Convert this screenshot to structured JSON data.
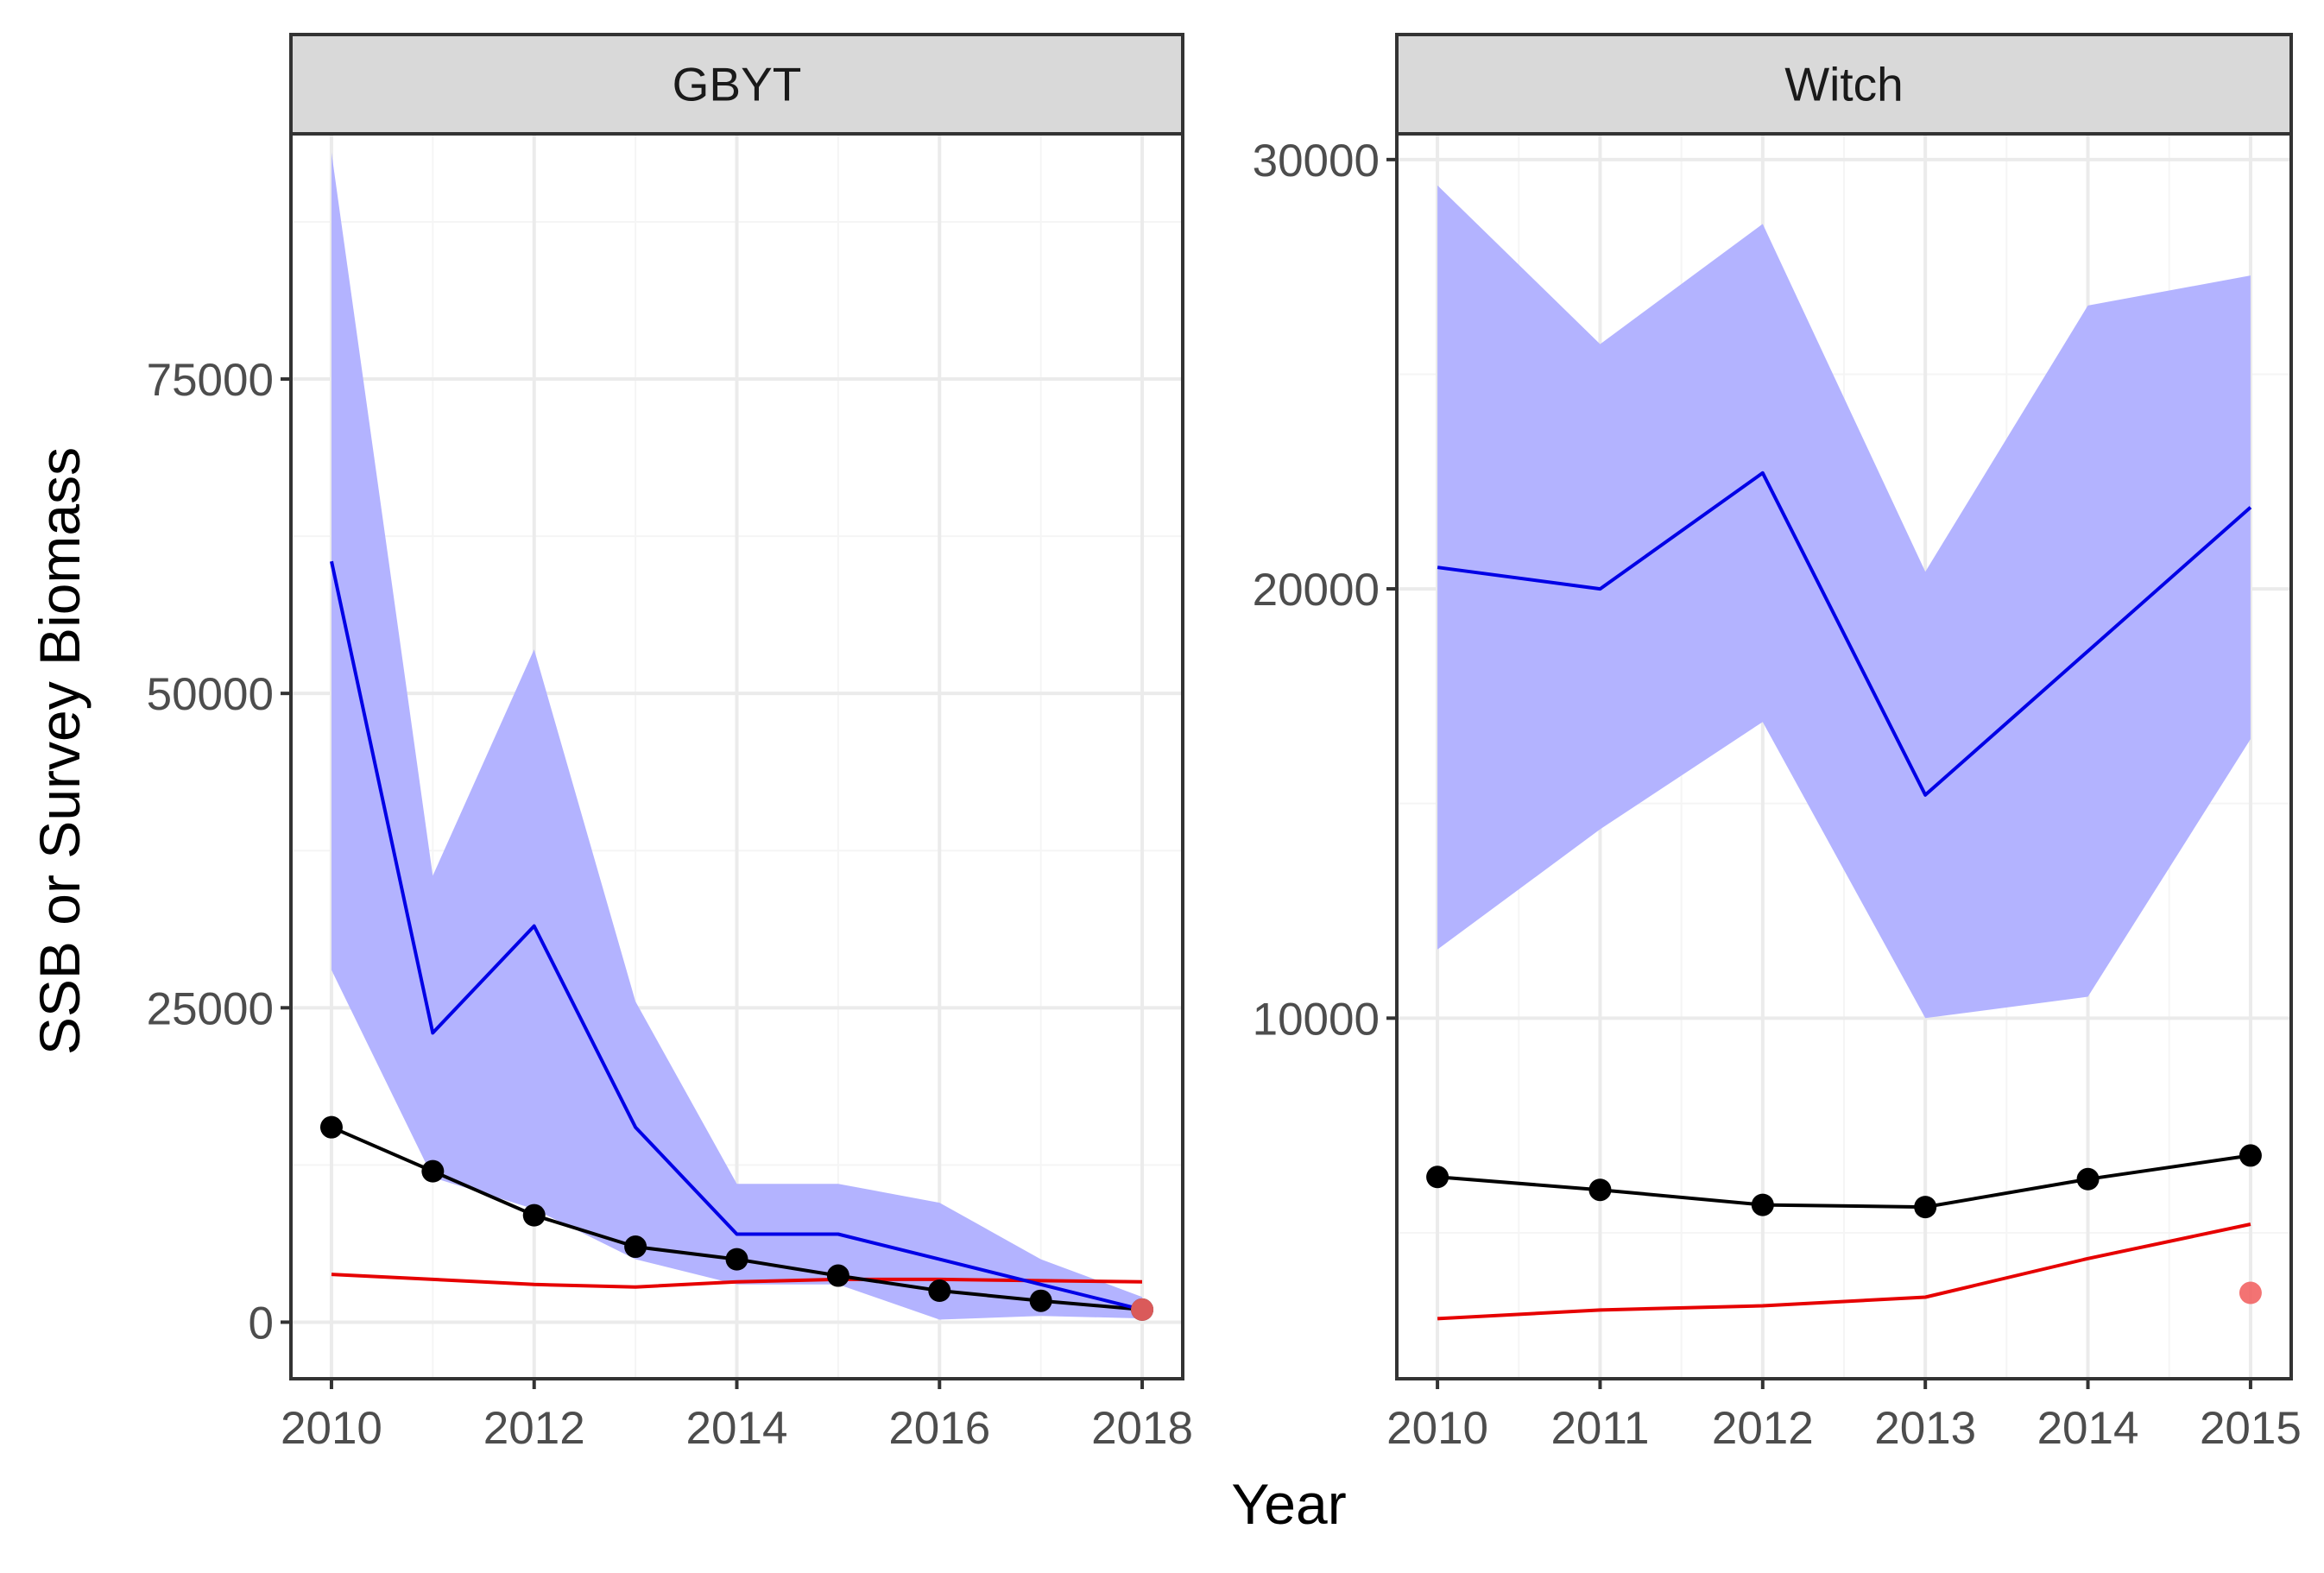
{
  "chart_data": {
    "type": "line",
    "xlabel": "Year",
    "ylabel": "SSB or Survey Biomass",
    "colors": {
      "ribbon_fill": "#b3b3ff",
      "blue_line": "#0000e6",
      "black_line": "#000000",
      "red_line": "#e60000",
      "red_point": "#f26464",
      "strip_bg": "#d9d9d9",
      "grid_major": "#ebebeb",
      "grid_minor": "#f5f5f5",
      "panel_border": "#333333"
    },
    "panels": [
      {
        "strip": "GBYT",
        "x": [
          2010,
          2011,
          2012,
          2013,
          2014,
          2015,
          2016,
          2017,
          2018
        ],
        "xlim": [
          2009.6,
          2018.4
        ],
        "ylim": [
          -4500,
          94500
        ],
        "xticks": [
          2010,
          2012,
          2014,
          2016,
          2018
        ],
        "xtick_labels": [
          "2010",
          "2012",
          "2014",
          "2016",
          "2018"
        ],
        "yticks": [
          0,
          25000,
          50000,
          75000
        ],
        "ytick_labels": [
          "0",
          "25000",
          "50000",
          "75000"
        ],
        "ribbon_lower": [
          28000,
          11500,
          9000,
          5000,
          3000,
          3000,
          200,
          500,
          300
        ],
        "ribbon_upper": [
          93000,
          35500,
          53500,
          25500,
          11000,
          11000,
          9500,
          5000,
          2000
        ],
        "blue_line": [
          60500,
          23000,
          31500,
          15500,
          7000,
          7000,
          null,
          null,
          1000
        ],
        "black_line": [
          15500,
          12000,
          8500,
          6000,
          5000,
          3700,
          2500,
          1700,
          1000
        ],
        "black_points": [
          15500,
          12000,
          8500,
          6000,
          5000,
          3700,
          2500,
          1700,
          1000
        ],
        "red_line": [
          3800,
          null,
          3000,
          2800,
          3200,
          3400,
          3400,
          3300,
          3200
        ],
        "red_points_x": [
          2018
        ],
        "red_points_y": [
          1000
        ]
      },
      {
        "strip": "Witch",
        "x": [
          2010,
          2011,
          2012,
          2013,
          2014,
          2015
        ],
        "xlim": [
          2009.75,
          2015.25
        ],
        "ylim": [
          1600,
          30600
        ],
        "xticks": [
          2010,
          2011,
          2012,
          2013,
          2014,
          2015
        ],
        "xtick_labels": [
          "2010",
          "2011",
          "2012",
          "2013",
          "2014",
          "2015"
        ],
        "yticks": [
          10000,
          20000,
          30000
        ],
        "ytick_labels": [
          "10000",
          "20000",
          "30000"
        ],
        "ribbon_lower": [
          11600,
          14400,
          16900,
          10000,
          10500,
          16500
        ],
        "ribbon_upper": [
          29400,
          25700,
          28500,
          20400,
          26600,
          27300
        ],
        "blue_line": [
          20500,
          20000,
          22700,
          15200,
          null,
          21900
        ],
        "black_line": [
          6300,
          6000,
          5650,
          5600,
          6250,
          6800
        ],
        "black_points": [
          6300,
          6000,
          5650,
          5600,
          6250,
          6800
        ],
        "red_line": [
          3000,
          3200,
          3300,
          3500,
          4400,
          5200
        ],
        "red_points_x": [
          2015
        ],
        "red_points_y": [
          3600
        ]
      }
    ]
  }
}
